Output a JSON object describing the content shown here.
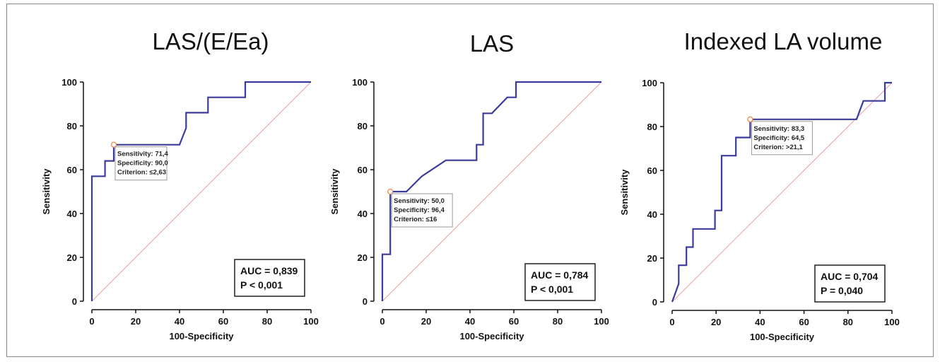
{
  "chart_data": [
    {
      "type": "line",
      "title": "LAS/(E/Ea)",
      "xlabel": "100-Specificity",
      "ylabel": "Sensitivity",
      "xlim": [
        0,
        100
      ],
      "ylim": [
        0,
        100
      ],
      "xticks": [
        "0",
        "20",
        "40",
        "60",
        "80",
        "100"
      ],
      "yticks": [
        "0",
        "20",
        "40",
        "60",
        "80",
        "100"
      ],
      "roc": [
        [
          0,
          0
        ],
        [
          0,
          57
        ],
        [
          6,
          57
        ],
        [
          6,
          64
        ],
        [
          10,
          64
        ],
        [
          10,
          71.4
        ],
        [
          40,
          71.4
        ],
        [
          43,
          79
        ],
        [
          43,
          86
        ],
        [
          53,
          86
        ],
        [
          53,
          93
        ],
        [
          70,
          93
        ],
        [
          70,
          100
        ],
        [
          100,
          100
        ]
      ],
      "reference_line": [
        [
          0,
          0
        ],
        [
          100,
          100
        ]
      ],
      "optimal_point": {
        "x": 10,
        "y": 71.4,
        "sensitivity": "Sensitivity: 71,4",
        "specificity": "Specificity: 90,0",
        "criterion": "Criterion: ≤2,63"
      },
      "auc": "AUC = 0,839",
      "p_value": "P < 0,001",
      "colors": {
        "roc": "#3b3b9c",
        "reference": "#e8a0a0",
        "point": "#f08a4b"
      }
    },
    {
      "type": "line",
      "title": "LAS",
      "xlabel": "100-Specificity",
      "ylabel": "Sensitivity",
      "xlim": [
        0,
        100
      ],
      "ylim": [
        0,
        100
      ],
      "xticks": [
        "0",
        "20",
        "40",
        "60",
        "80",
        "100"
      ],
      "yticks": [
        "0",
        "20",
        "40",
        "60",
        "80",
        "100"
      ],
      "roc": [
        [
          0,
          0
        ],
        [
          0,
          21.4
        ],
        [
          3.6,
          21.4
        ],
        [
          3.6,
          50
        ],
        [
          11,
          50
        ],
        [
          18,
          57
        ],
        [
          29,
          64.3
        ],
        [
          43,
          64.3
        ],
        [
          43,
          71.4
        ],
        [
          46,
          71.4
        ],
        [
          46,
          85.7
        ],
        [
          50,
          85.7
        ],
        [
          57,
          93
        ],
        [
          61,
          93
        ],
        [
          61,
          100
        ],
        [
          100,
          100
        ]
      ],
      "reference_line": [
        [
          0,
          0
        ],
        [
          100,
          100
        ]
      ],
      "optimal_point": {
        "x": 3.6,
        "y": 50,
        "sensitivity": "Sensitivity: 50,0",
        "specificity": "Specificity: 96,4",
        "criterion": "Criterion: ≤16"
      },
      "auc": "AUC = 0,784",
      "p_value": "P < 0,001",
      "colors": {
        "roc": "#3b3b9c",
        "reference": "#e8a0a0",
        "point": "#f08a4b"
      }
    },
    {
      "type": "line",
      "title": "Indexed LA volume",
      "xlabel": "100-Specificity",
      "ylabel": "Sensitivity",
      "xlim": [
        0,
        100
      ],
      "ylim": [
        0,
        100
      ],
      "xticks": [
        "0",
        "20",
        "40",
        "60",
        "80",
        "100"
      ],
      "yticks": [
        "0",
        "20",
        "40",
        "60",
        "80",
        "100"
      ],
      "roc": [
        [
          0,
          0
        ],
        [
          3,
          8.3
        ],
        [
          3,
          16.7
        ],
        [
          6.5,
          16.7
        ],
        [
          6.5,
          25
        ],
        [
          9.5,
          25
        ],
        [
          9.5,
          33.3
        ],
        [
          19.5,
          33.3
        ],
        [
          19.5,
          41.7
        ],
        [
          22.5,
          41.7
        ],
        [
          22.5,
          66.7
        ],
        [
          29,
          66.7
        ],
        [
          29,
          75
        ],
        [
          35.5,
          75
        ],
        [
          35.5,
          83.3
        ],
        [
          83.9,
          83.3
        ],
        [
          87,
          91.7
        ],
        [
          96.8,
          91.7
        ],
        [
          96.8,
          100
        ],
        [
          100,
          100
        ]
      ],
      "reference_line": [
        [
          0,
          0
        ],
        [
          100,
          100
        ]
      ],
      "optimal_point": {
        "x": 35.5,
        "y": 83.3,
        "sensitivity": "Sensitivity: 83,3",
        "specificity": "Specificity: 64,5",
        "criterion": "Criterion: >21,1"
      },
      "auc": "AUC = 0,704",
      "p_value": "P = 0,040",
      "colors": {
        "roc": "#3b3b9c",
        "reference": "#e8a0a0",
        "point": "#f08a4b"
      }
    }
  ]
}
